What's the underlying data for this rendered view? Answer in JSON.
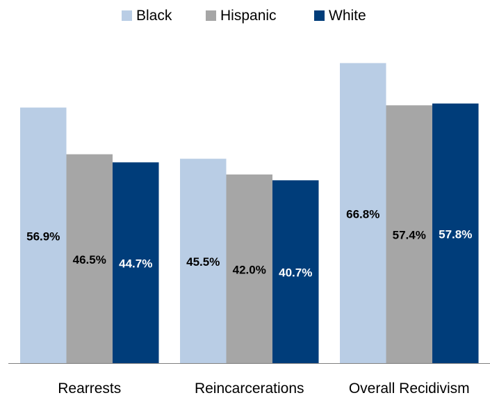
{
  "chart_data": {
    "type": "bar",
    "categories": [
      "Rearrests",
      "Reincarcerations",
      "Overall Recidivism"
    ],
    "series": [
      {
        "name": "Black",
        "color": "#b9cde5",
        "values": [
          56.9,
          45.5,
          66.8
        ],
        "labels": [
          "56.9%",
          "45.5%",
          "66.8%"
        ],
        "label_color": "#000000"
      },
      {
        "name": "Hispanic",
        "color": "#a6a6a6",
        "values": [
          46.5,
          42.0,
          57.4
        ],
        "labels": [
          "46.5%",
          "42.0%",
          "57.4%"
        ],
        "label_color": "#000000"
      },
      {
        "name": "White",
        "color": "#003d7a",
        "values": [
          44.7,
          40.7,
          57.8
        ],
        "labels": [
          "44.7%",
          "40.7%",
          "57.8%"
        ],
        "label_color": "#ffffff"
      }
    ],
    "title": "",
    "xlabel": "",
    "ylabel": "",
    "ylim": [
      0,
      70
    ],
    "grid": false,
    "legend_position": "top"
  }
}
